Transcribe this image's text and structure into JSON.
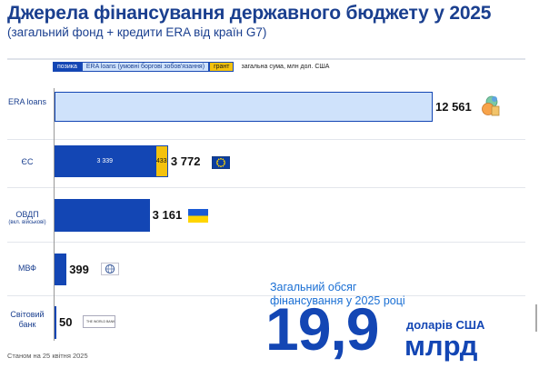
{
  "title": "Джерела фінансування державного бюджету у 2025",
  "subtitle": "(загальний фонд + кредити ERA від країн G7)",
  "legend": {
    "loan": "позика",
    "era": "ERA loans (умовні боргові зобов'язання)",
    "grant": "грант",
    "note": "загальна сума, млн дол. США"
  },
  "colors": {
    "loan": "#1346b4",
    "era": "#cfe2fb",
    "grant": "#f4c20d",
    "accent": "#1a3f8f"
  },
  "chart_data": {
    "type": "bar",
    "orientation": "horizontal",
    "stacked": true,
    "unit": "млн дол. США",
    "categories": [
      {
        "label": "ERA loans",
        "note": ""
      },
      {
        "label": "ЄС",
        "note": ""
      },
      {
        "label": "ОВДП",
        "note": "(вкл. військові)"
      },
      {
        "label": "МВФ",
        "note": ""
      },
      {
        "label": "Світовий банк",
        "note": ""
      }
    ],
    "series": [
      {
        "name": "позика",
        "values": [
          0,
          3339,
          3161,
          399,
          50
        ],
        "labels": [
          "",
          "3 339",
          "",
          "",
          ""
        ]
      },
      {
        "name": "ERA loans (умовні боргові зобов'язання)",
        "values": [
          12561,
          0,
          0,
          0,
          0
        ],
        "labels": [
          "",
          "",
          "",
          "",
          ""
        ]
      },
      {
        "name": "грант",
        "values": [
          0,
          433,
          0,
          0,
          0
        ],
        "labels": [
          "",
          "433",
          "",
          "",
          ""
        ]
      }
    ],
    "totals": [
      "12 561",
      "3 772",
      "3 161",
      "399",
      "50"
    ],
    "xlim": [
      0,
      12561
    ],
    "grid": false,
    "legend_position": "top"
  },
  "summary": {
    "caption_line1": "Загальний обсяг",
    "caption_line2": "фінансування у 2025 році",
    "value": "19,9",
    "unit_line1": "доларів США",
    "unit_line2": "млрд"
  },
  "source_date": "Станом на 25 квітня 2025",
  "worldbank_logo_text": "THE WORLD BANK"
}
